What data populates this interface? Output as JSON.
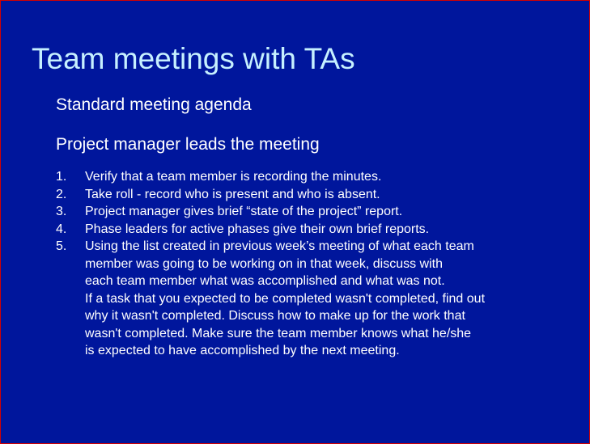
{
  "slide": {
    "title": "Team meetings with TAs",
    "subheadings": [
      "Standard meeting agenda",
      "Project manager leads the meeting"
    ],
    "agenda_items": [
      {
        "number": "1.",
        "lines": [
          "Verify that a team member is recording the minutes."
        ]
      },
      {
        "number": "2.",
        "lines": [
          "Take roll - record who is present and who is absent."
        ]
      },
      {
        "number": "3.",
        "lines": [
          "Project manager gives brief “state of the project” report."
        ]
      },
      {
        "number": "4.",
        "lines": [
          "Phase leaders for active phases give their own brief reports."
        ]
      },
      {
        "number": "5.",
        "lines": [
          "Using the list created in previous week’s meeting of what each team",
          "member was going to be working on in that week, discuss with",
          "each team member what was accomplished and what was not.",
          "If a task that you expected to be completed wasn't completed, find out",
          "why it wasn't completed.  Discuss how to make up for the work that",
          "wasn't completed.  Make sure the team member knows what he/she",
          "is expected to have accomplished by the next meeting."
        ]
      }
    ]
  },
  "colors": {
    "background": "#00169c",
    "title": "#c6f0ff",
    "text": "#ffffff",
    "border": "#d40000"
  }
}
